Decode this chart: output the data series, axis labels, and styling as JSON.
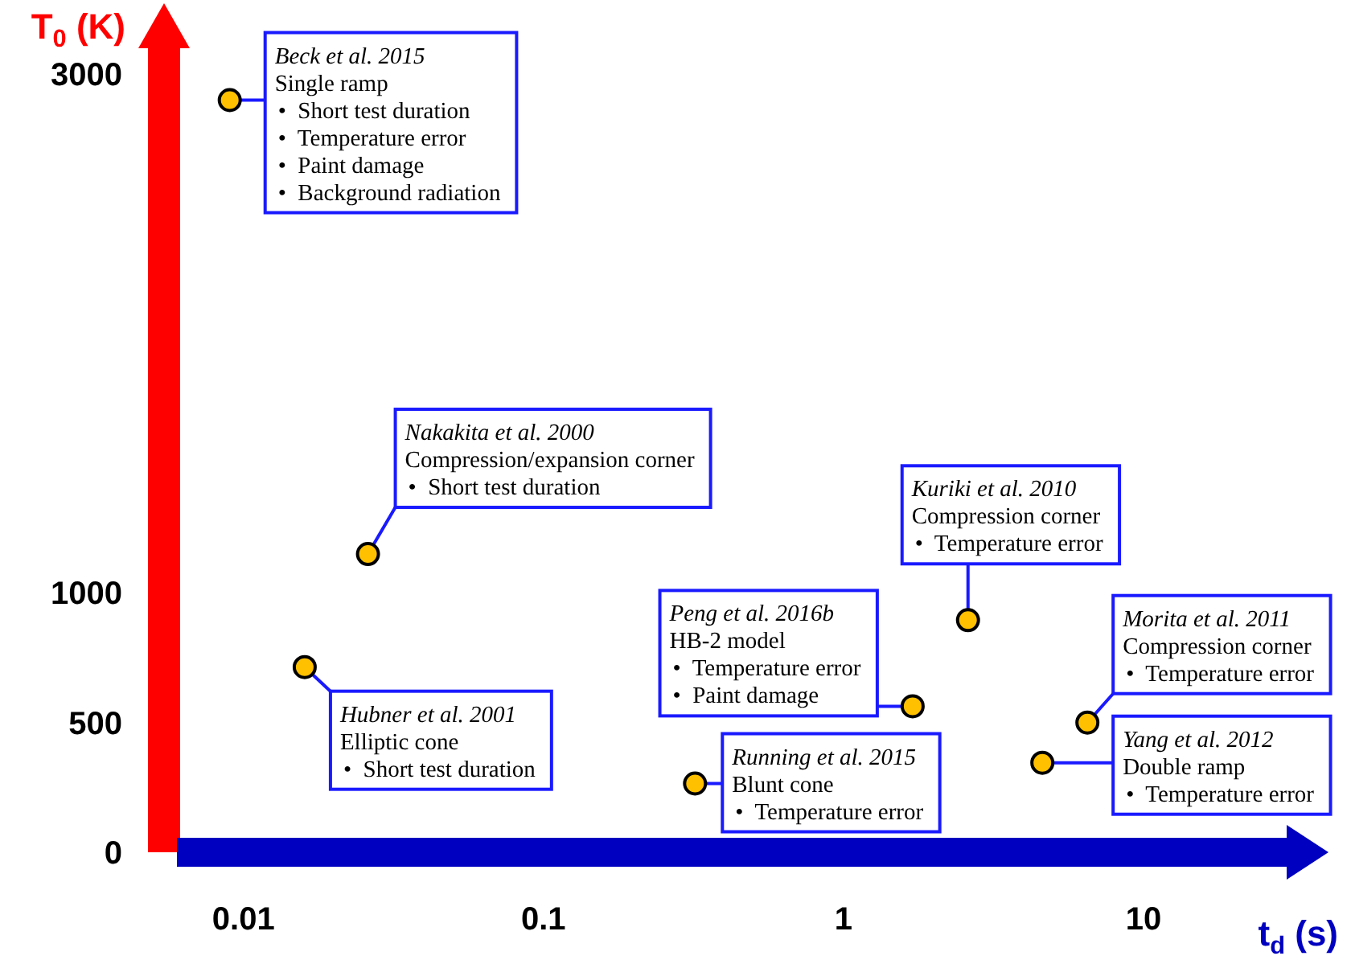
{
  "chart_data": {
    "type": "scatter",
    "xlabel": "t$_{d}$ (s)",
    "ylabel": "T$_{0}$ (K)",
    "log": "x",
    "xlim": [
      0.006,
      30
    ],
    "xticks": [
      0.01,
      0.1,
      1,
      10
    ],
    "ylim": [
      0,
      3100
    ],
    "yticks": [
      0,
      500,
      1000,
      3000
    ],
    "marker": "circle",
    "series": [
      {
        "color": "#ffc000",
        "x": [
          0.009,
          0.026,
          0.016,
          0.32,
          1.7,
          2.6,
          6.5,
          4.6
        ],
        "values": [
          2900,
          1150,
          714,
          265,
          563,
          895,
          500,
          345
        ]
      }
    ],
    "annotations": [
      {
        "text": "Beck et al. 2015\nSingle ramp\n•  Short test duration\n•  Temperature error\n•  Paint damage\n•  Background radiation",
        "x": 0.009,
        "y": 2900
      },
      {
        "text": "Nakakita et al. 2000\nCompression/expansion corner\n•  Short test duration",
        "x": 0.026,
        "y": 1150
      },
      {
        "text": "Hubner et al. 2001\nElliptic cone\n•  Short test duration",
        "x": 0.016,
        "y": 714
      },
      {
        "text": "Running et al. 2015\nBlunt cone\n•  Temperature error",
        "x": 0.32,
        "y": 265
      },
      {
        "text": "Peng et al. 2016b\nHB-2 model\n•  Temperature error\n•  Paint damage",
        "x": 1.7,
        "y": 563
      },
      {
        "text": "Kuriki et al. 2010\nCompression corner\n•  Temperature error",
        "x": 2.6,
        "y": 895
      },
      {
        "text": "Morita et al. 2011\nCompression corner\n•  Temperature error",
        "x": 6.5,
        "y": 500
      },
      {
        "text": "Yang et al. 2012\nDouble ramp\n•  Temperature error",
        "x": 4.6,
        "y": 345
      }
    ]
  }
}
